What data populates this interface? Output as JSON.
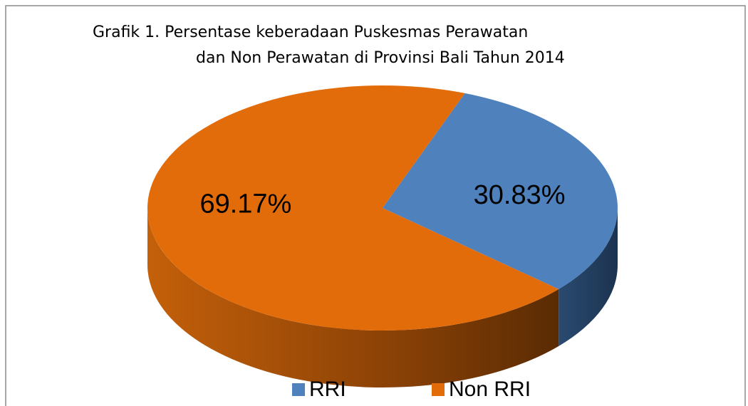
{
  "chart_data": {
    "type": "pie",
    "title": [
      "Grafik 1.  Persentase keberadaan Puskesmas Perawatan",
      "dan Non Perawatan di Provinsi Bali Tahun 2014"
    ],
    "categories": [
      "RRI",
      "Non RRI"
    ],
    "values": [
      30.83,
      69.17
    ],
    "value_labels": [
      "30.83%",
      "69.17%"
    ],
    "colors": [
      "#4f81bd",
      "#e36c0a"
    ],
    "legend": "bottom"
  }
}
